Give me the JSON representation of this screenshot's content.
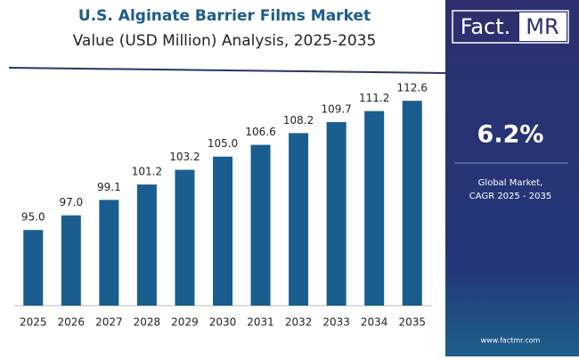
{
  "chart_data": {
    "type": "bar",
    "title": "U.S. Alginate Barrier Films Market",
    "subtitle": "Value (USD Million) Analysis, 2025-2035",
    "categories": [
      "2025",
      "2026",
      "2027",
      "2028",
      "2029",
      "2030",
      "2031",
      "2032",
      "2033",
      "2034",
      "2035"
    ],
    "values": [
      95.0,
      97.0,
      99.1,
      101.2,
      103.2,
      105.0,
      106.6,
      108.2,
      109.7,
      111.2,
      112.6
    ],
    "value_labels": [
      "95.0",
      "97.0",
      "99.1",
      "101.2",
      "103.2",
      "105.0",
      "106.6",
      "108.2",
      "109.7",
      "111.2",
      "112.6"
    ],
    "color": "#195e8e",
    "ylim": [
      84.7,
      114.8
    ]
  },
  "brand": {
    "left": "Fact.",
    "right": "MR"
  },
  "cagr": {
    "value": "6.2%",
    "line1": "Global Market,",
    "line2": "CAGR 2025 - 2035"
  },
  "website": "www.factmr.com"
}
